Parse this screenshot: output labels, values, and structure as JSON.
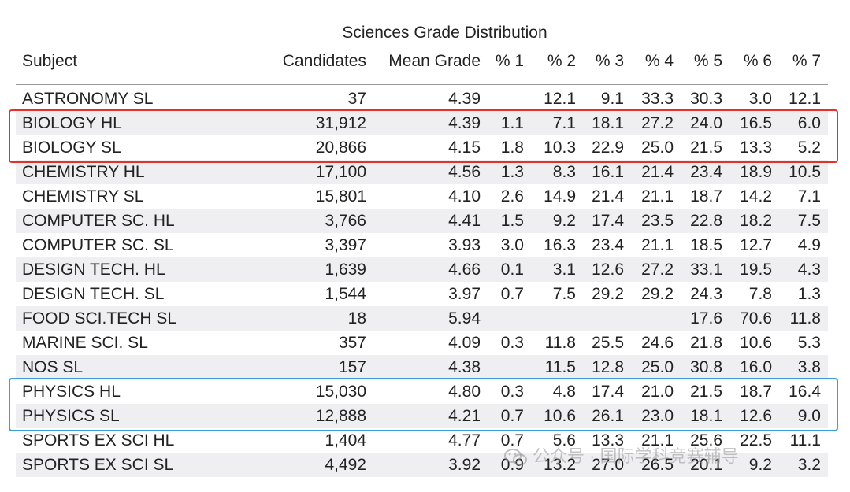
{
  "chart_data": {
    "type": "table",
    "title": "Sciences Grade Distribution",
    "columns": [
      "Subject",
      "Candidates",
      "Mean Grade",
      "% 1",
      "% 2",
      "% 3",
      "% 4",
      "% 5",
      "% 6",
      "% 7"
    ],
    "rows": [
      [
        "ASTRONOMY SL",
        "37",
        "4.39",
        "",
        "12.1",
        "9.1",
        "33.3",
        "30.3",
        "3.0",
        "12.1"
      ],
      [
        "BIOLOGY HL",
        "31,912",
        "4.39",
        "1.1",
        "7.1",
        "18.1",
        "27.2",
        "24.0",
        "16.5",
        "6.0"
      ],
      [
        "BIOLOGY SL",
        "20,866",
        "4.15",
        "1.8",
        "10.3",
        "22.9",
        "25.0",
        "21.5",
        "13.3",
        "5.2"
      ],
      [
        "CHEMISTRY HL",
        "17,100",
        "4.56",
        "1.3",
        "8.3",
        "16.1",
        "21.4",
        "23.4",
        "18.9",
        "10.5"
      ],
      [
        "CHEMISTRY SL",
        "15,801",
        "4.10",
        "2.6",
        "14.9",
        "21.4",
        "21.1",
        "18.7",
        "14.2",
        "7.1"
      ],
      [
        "COMPUTER SC. HL",
        "3,766",
        "4.41",
        "1.5",
        "9.2",
        "17.4",
        "23.5",
        "22.8",
        "18.2",
        "7.5"
      ],
      [
        "COMPUTER SC. SL",
        "3,397",
        "3.93",
        "3.0",
        "16.3",
        "23.4",
        "21.1",
        "18.5",
        "12.7",
        "4.9"
      ],
      [
        "DESIGN TECH. HL",
        "1,639",
        "4.66",
        "0.1",
        "3.1",
        "12.6",
        "27.2",
        "33.1",
        "19.5",
        "4.3"
      ],
      [
        "DESIGN TECH. SL",
        "1,544",
        "3.97",
        "0.7",
        "7.5",
        "29.2",
        "29.2",
        "24.3",
        "7.8",
        "1.3"
      ],
      [
        "FOOD SCI.TECH SL",
        "18",
        "5.94",
        "",
        "",
        "",
        "",
        "17.6",
        "70.6",
        "11.8"
      ],
      [
        "MARINE SCI. SL",
        "357",
        "4.09",
        "0.3",
        "11.8",
        "25.5",
        "24.6",
        "21.8",
        "10.6",
        "5.3"
      ],
      [
        "NOS SL",
        "157",
        "4.38",
        "",
        "11.5",
        "12.8",
        "25.0",
        "30.8",
        "16.0",
        "3.8"
      ],
      [
        "PHYSICS HL",
        "15,030",
        "4.80",
        "0.3",
        "4.8",
        "17.4",
        "21.0",
        "21.5",
        "18.7",
        "16.4"
      ],
      [
        "PHYSICS SL",
        "12,888",
        "4.21",
        "0.7",
        "10.6",
        "26.1",
        "23.0",
        "18.1",
        "12.6",
        "9.0"
      ],
      [
        "SPORTS EX SCI HL",
        "1,404",
        "4.77",
        "0.7",
        "5.6",
        "13.3",
        "21.1",
        "25.6",
        "22.5",
        "11.1"
      ],
      [
        "SPORTS EX SCI SL",
        "4,492",
        "3.92",
        "0.9",
        "13.2",
        "27.0",
        "26.5",
        "20.1",
        "9.2",
        "3.2"
      ]
    ],
    "highlight_groups": [
      {
        "rows": [
          1,
          2
        ],
        "color": "#e8302a"
      },
      {
        "rows": [
          12,
          13
        ],
        "color": "#3a9de0"
      }
    ],
    "row_stripe_color": "#efeff2"
  },
  "watermark": {
    "text": "公众号 · 国际学科竞赛辅导",
    "icon": "wechat-icon"
  }
}
